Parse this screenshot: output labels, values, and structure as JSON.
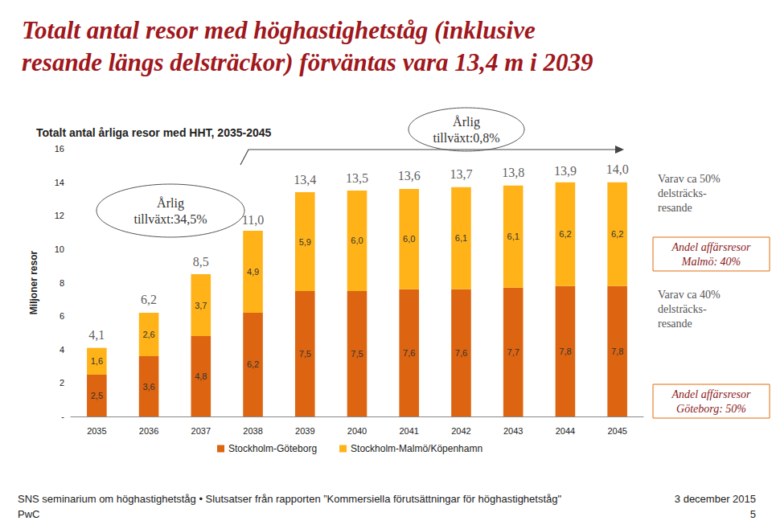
{
  "chart_data": {
    "type": "bar",
    "title": "Totalt antal resor med höghastighetståg (inklusive\nresande längs delsträckor) förväntas vara 13,4 m i 2039",
    "subtitle": "Totalt antal årliga resor med HHT, 2035-2045",
    "y_label": "Miljoner resor",
    "categories": [
      "2035",
      "2036",
      "2037",
      "2038",
      "2039",
      "2040",
      "2041",
      "2042",
      "2043",
      "2044",
      "2045"
    ],
    "series": [
      {
        "name": "Stockholm-Göteborg",
        "color": "#DD6410",
        "values": [
          2.5,
          3.6,
          4.8,
          6.2,
          7.5,
          7.5,
          7.6,
          7.6,
          7.7,
          7.8,
          7.8
        ],
        "value_labels": [
          "2,5",
          "3,6",
          "4,8",
          "6,2",
          "7,5",
          "7,5",
          "7,6",
          "7,6",
          "7,7",
          "7,8",
          "7,8"
        ]
      },
      {
        "name": "Stockholm-Malmö/Köpenhamn",
        "color": "#FFB319",
        "values": [
          1.6,
          2.6,
          3.7,
          4.9,
          5.9,
          6.0,
          6.0,
          6.1,
          6.1,
          6.2,
          6.2
        ],
        "value_labels": [
          "1,6",
          "2,6",
          "3,7",
          "4,9",
          "5,9",
          "6,0",
          "6,0",
          "6,1",
          "6,1",
          "6,2",
          "6,2"
        ]
      }
    ],
    "totals": [
      4.1,
      6.2,
      8.5,
      11.0,
      13.4,
      13.5,
      13.6,
      13.7,
      13.8,
      13.9,
      14.0
    ],
    "total_labels": [
      "4,1",
      "6,2",
      "8,5",
      "11,0",
      "13,4",
      "13,5",
      "13,6",
      "13,7",
      "13,8",
      "13,9",
      "14,0"
    ],
    "stacked": true,
    "data_labels": true,
    "ylim": [
      0,
      16
    ],
    "yticks": [
      {
        "value": 0,
        "label": "-"
      },
      2,
      4,
      6,
      8,
      10,
      12,
      14,
      16
    ],
    "grid": false,
    "legend": "bottom",
    "annotations": [
      "Årlig\ntillväxt:34,5%",
      "Årlig\ntillväxt:0,8%",
      "Varav ca 50%\ndelsträcks-\nresande",
      "Andel affärsresor\nMalmö: 40%",
      "Varav ca 40%\ndelsträcks-\nresande",
      "Andel affärsresor\nGöteborg: 50%"
    ],
    "footer": [
      "SNS seminarium om höghastighetståg • Slutsatser från rapporten ”Kommersiella förutsättningar för höghastighetståg\"",
      "3 december 2015",
      "PwC",
      "5"
    ]
  }
}
